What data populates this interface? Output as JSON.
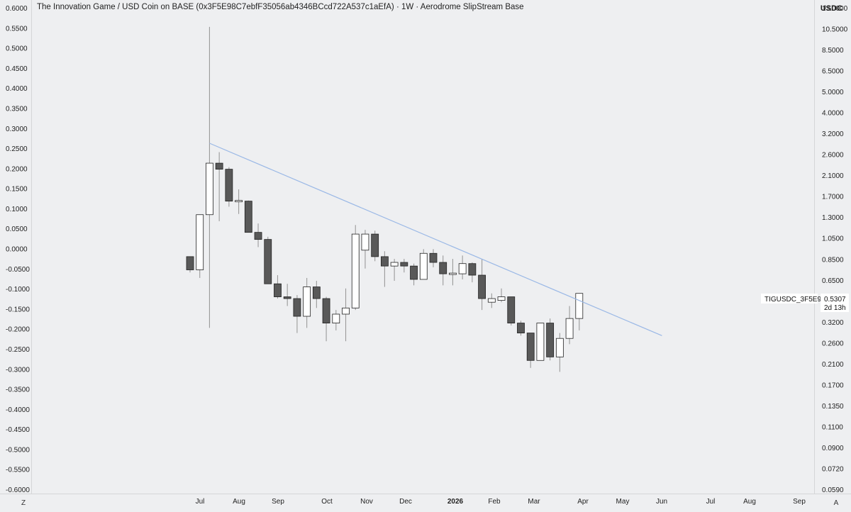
{
  "title": "The Innovation Game / USD Coin on BASE (0x3F5E98C7ebfF35056ab4346BCcd722A537c1aEfA) · 1W · Aerodrome SlipStream Base",
  "unit": "USDC",
  "corner_left": "Z",
  "corner_right": "A",
  "price_label": {
    "symbol": "TIGUSDC_3F5E98",
    "value": "0.5307",
    "countdown": "2d 13h"
  },
  "colors": {
    "background": "#eeeff1",
    "up_fill": "#ffffff",
    "down_fill": "#595959",
    "candle_stroke": "#222222",
    "wick": "#9a9a9a",
    "trendline": "#9ab8e6"
  },
  "chart_data": {
    "type": "candlestick",
    "title": "The Innovation Game / USD Coin on BASE (0x3F5E98C7ebfF35056ab4346BCcd722A537c1aEfA) · 1W · Aerodrome SlipStream Base",
    "left_axis": {
      "ticks": [
        "0.6000",
        "0.5500",
        "0.5000",
        "0.4500",
        "0.4000",
        "0.3500",
        "0.3000",
        "0.2500",
        "0.2000",
        "0.1500",
        "0.1000",
        "0.0500",
        "0.0000",
        "-0.0500",
        "-0.1000",
        "-0.1500",
        "-0.2000",
        "-0.2500",
        "-0.3000",
        "-0.3500",
        "-0.4000",
        "-0.4500",
        "-0.5000",
        "-0.5500",
        "-0.6000"
      ]
    },
    "right_axis": {
      "scale": "log",
      "ylim": [
        0.059,
        13.0
      ],
      "ticks": [
        "13.0000",
        "10.5000",
        "8.5000",
        "6.5000",
        "5.0000",
        "4.0000",
        "3.2000",
        "2.6000",
        "2.1000",
        "1.7000",
        "1.3000",
        "1.0500",
        "0.8500",
        "0.6500",
        "0.5307",
        "0.4000",
        "0.3200",
        "0.2600",
        "0.2100",
        "0.1700",
        "0.1350",
        "0.1100",
        "0.0900",
        "0.0720",
        "0.0590"
      ]
    },
    "x_axis": {
      "labels": [
        "Jul",
        "Aug",
        "Sep",
        "Oct",
        "Nov",
        "Dec",
        "2026",
        "Feb",
        "Mar",
        "Apr",
        "May",
        "Jun",
        "Jul",
        "Aug",
        "Sep"
      ],
      "bold_labels": [
        "2026"
      ]
    },
    "grid": false,
    "candles": [
      {
        "o": 0.8,
        "h": 0.8,
        "l": 0.67,
        "c": 0.69
      },
      {
        "o": 0.69,
        "h": 1.28,
        "l": 0.63,
        "c": 1.28
      },
      {
        "o": 1.28,
        "h": 10.5,
        "l": 0.36,
        "c": 2.28
      },
      {
        "o": 2.28,
        "h": 2.58,
        "l": 1.19,
        "c": 2.13
      },
      {
        "o": 2.13,
        "h": 2.18,
        "l": 1.4,
        "c": 1.49
      },
      {
        "o": 1.49,
        "h": 1.7,
        "l": 1.29,
        "c": 1.49
      },
      {
        "o": 1.49,
        "h": 1.5,
        "l": 1.05,
        "c": 1.05
      },
      {
        "o": 1.05,
        "h": 1.16,
        "l": 0.89,
        "c": 0.97
      },
      {
        "o": 0.97,
        "h": 1.0,
        "l": 0.59,
        "c": 0.59
      },
      {
        "o": 0.59,
        "h": 0.65,
        "l": 0.5,
        "c": 0.51
      },
      {
        "o": 0.51,
        "h": 0.59,
        "l": 0.46,
        "c": 0.5
      },
      {
        "o": 0.5,
        "h": 0.52,
        "l": 0.34,
        "c": 0.41
      },
      {
        "o": 0.41,
        "h": 0.63,
        "l": 0.36,
        "c": 0.57
      },
      {
        "o": 0.57,
        "h": 0.61,
        "l": 0.45,
        "c": 0.5
      },
      {
        "o": 0.5,
        "h": 0.51,
        "l": 0.31,
        "c": 0.38
      },
      {
        "o": 0.38,
        "h": 0.44,
        "l": 0.35,
        "c": 0.42
      },
      {
        "o": 0.42,
        "h": 0.56,
        "l": 0.31,
        "c": 0.45
      },
      {
        "o": 0.45,
        "h": 1.14,
        "l": 0.44,
        "c": 1.03
      },
      {
        "o": 0.86,
        "h": 1.08,
        "l": 0.7,
        "c": 1.03
      },
      {
        "o": 1.03,
        "h": 1.07,
        "l": 0.76,
        "c": 0.8
      },
      {
        "o": 0.8,
        "h": 0.85,
        "l": 0.57,
        "c": 0.72
      },
      {
        "o": 0.72,
        "h": 0.78,
        "l": 0.61,
        "c": 0.75
      },
      {
        "o": 0.75,
        "h": 0.78,
        "l": 0.67,
        "c": 0.72
      },
      {
        "o": 0.72,
        "h": 0.74,
        "l": 0.58,
        "c": 0.62
      },
      {
        "o": 0.62,
        "h": 0.87,
        "l": 0.62,
        "c": 0.83
      },
      {
        "o": 0.83,
        "h": 0.87,
        "l": 0.71,
        "c": 0.75
      },
      {
        "o": 0.75,
        "h": 0.81,
        "l": 0.58,
        "c": 0.66
      },
      {
        "o": 0.66,
        "h": 0.78,
        "l": 0.58,
        "c": 0.66
      },
      {
        "o": 0.66,
        "h": 0.81,
        "l": 0.62,
        "c": 0.74
      },
      {
        "o": 0.74,
        "h": 0.75,
        "l": 0.6,
        "c": 0.65
      },
      {
        "o": 0.65,
        "h": 0.78,
        "l": 0.44,
        "c": 0.5
      },
      {
        "o": 0.48,
        "h": 0.53,
        "l": 0.45,
        "c": 0.5
      },
      {
        "o": 0.49,
        "h": 0.56,
        "l": 0.48,
        "c": 0.51
      },
      {
        "o": 0.51,
        "h": 0.51,
        "l": 0.37,
        "c": 0.38
      },
      {
        "o": 0.38,
        "h": 0.39,
        "l": 0.33,
        "c": 0.34
      },
      {
        "o": 0.34,
        "h": 0.34,
        "l": 0.23,
        "c": 0.25
      },
      {
        "o": 0.25,
        "h": 0.38,
        "l": 0.25,
        "c": 0.38
      },
      {
        "o": 0.38,
        "h": 0.4,
        "l": 0.25,
        "c": 0.26
      },
      {
        "o": 0.26,
        "h": 0.34,
        "l": 0.22,
        "c": 0.32
      },
      {
        "o": 0.32,
        "h": 0.46,
        "l": 0.3,
        "c": 0.4
      },
      {
        "o": 0.4,
        "h": 0.53,
        "l": 0.35,
        "c": 0.53
      }
    ],
    "trendline": {
      "start": {
        "candle": 2,
        "value": 2.85
      },
      "end": {
        "candle": 48.5,
        "value": 0.33
      }
    }
  }
}
